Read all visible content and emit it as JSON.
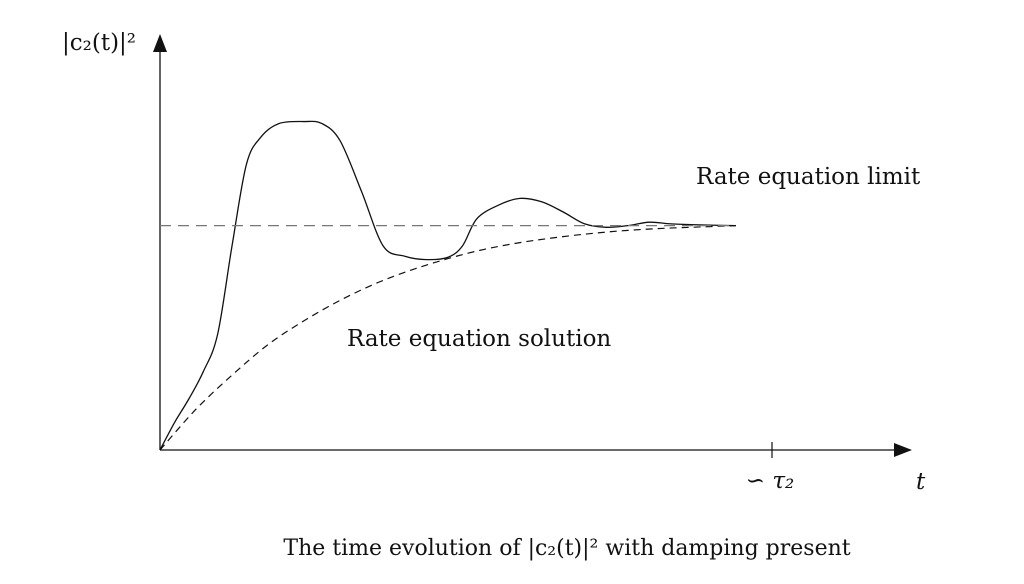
{
  "chart_data": {
    "type": "line",
    "ylabel": "|c₂(t)|²",
    "xlabel": "t",
    "x_ticks": [
      {
        "x": 0.85,
        "label": "∽ τ₂"
      }
    ],
    "xlim": [
      0,
      1
    ],
    "ylim": [
      0,
      1
    ],
    "series": [
      {
        "name": "",
        "style": "solid",
        "points": [
          [
            0,
            0
          ],
          [
            0.02,
            0.08
          ],
          [
            0.04,
            0.15
          ],
          [
            0.06,
            0.23
          ],
          [
            0.08,
            0.34
          ],
          [
            0.1,
            0.6
          ],
          [
            0.12,
            0.84
          ],
          [
            0.14,
            0.92
          ],
          [
            0.165,
            0.96
          ],
          [
            0.2,
            0.966
          ],
          [
            0.225,
            0.96
          ],
          [
            0.25,
            0.91
          ],
          [
            0.28,
            0.76
          ],
          [
            0.31,
            0.6
          ],
          [
            0.34,
            0.57
          ],
          [
            0.37,
            0.56
          ],
          [
            0.4,
            0.567
          ],
          [
            0.42,
            0.6
          ],
          [
            0.44,
            0.68
          ],
          [
            0.47,
            0.72
          ],
          [
            0.5,
            0.74
          ],
          [
            0.53,
            0.73
          ],
          [
            0.56,
            0.7
          ],
          [
            0.59,
            0.665
          ],
          [
            0.62,
            0.655
          ],
          [
            0.65,
            0.66
          ],
          [
            0.68,
            0.67
          ],
          [
            0.71,
            0.665
          ],
          [
            0.75,
            0.662
          ],
          [
            0.8,
            0.66
          ]
        ]
      },
      {
        "name": "Rate equation solution",
        "style": "dashed",
        "points": [
          [
            0,
            0
          ],
          [
            0.05,
            0.12
          ],
          [
            0.1,
            0.22
          ],
          [
            0.15,
            0.31
          ],
          [
            0.2,
            0.38
          ],
          [
            0.25,
            0.44
          ],
          [
            0.3,
            0.49
          ],
          [
            0.35,
            0.53
          ],
          [
            0.4,
            0.563
          ],
          [
            0.45,
            0.59
          ],
          [
            0.5,
            0.61
          ],
          [
            0.55,
            0.625
          ],
          [
            0.6,
            0.637
          ],
          [
            0.65,
            0.646
          ],
          [
            0.7,
            0.652
          ],
          [
            0.75,
            0.656
          ],
          [
            0.8,
            0.66
          ]
        ]
      },
      {
        "name": "Rate equation limit",
        "style": "long-dashed",
        "points": [
          [
            0,
            0.66
          ],
          [
            0.8,
            0.66
          ]
        ]
      }
    ],
    "annotations": [
      "Rate equation limit",
      "Rate equation solution"
    ],
    "title": "The time evolution of |c₂(t)|² with damping present",
    "grid": false,
    "legend": "none"
  }
}
